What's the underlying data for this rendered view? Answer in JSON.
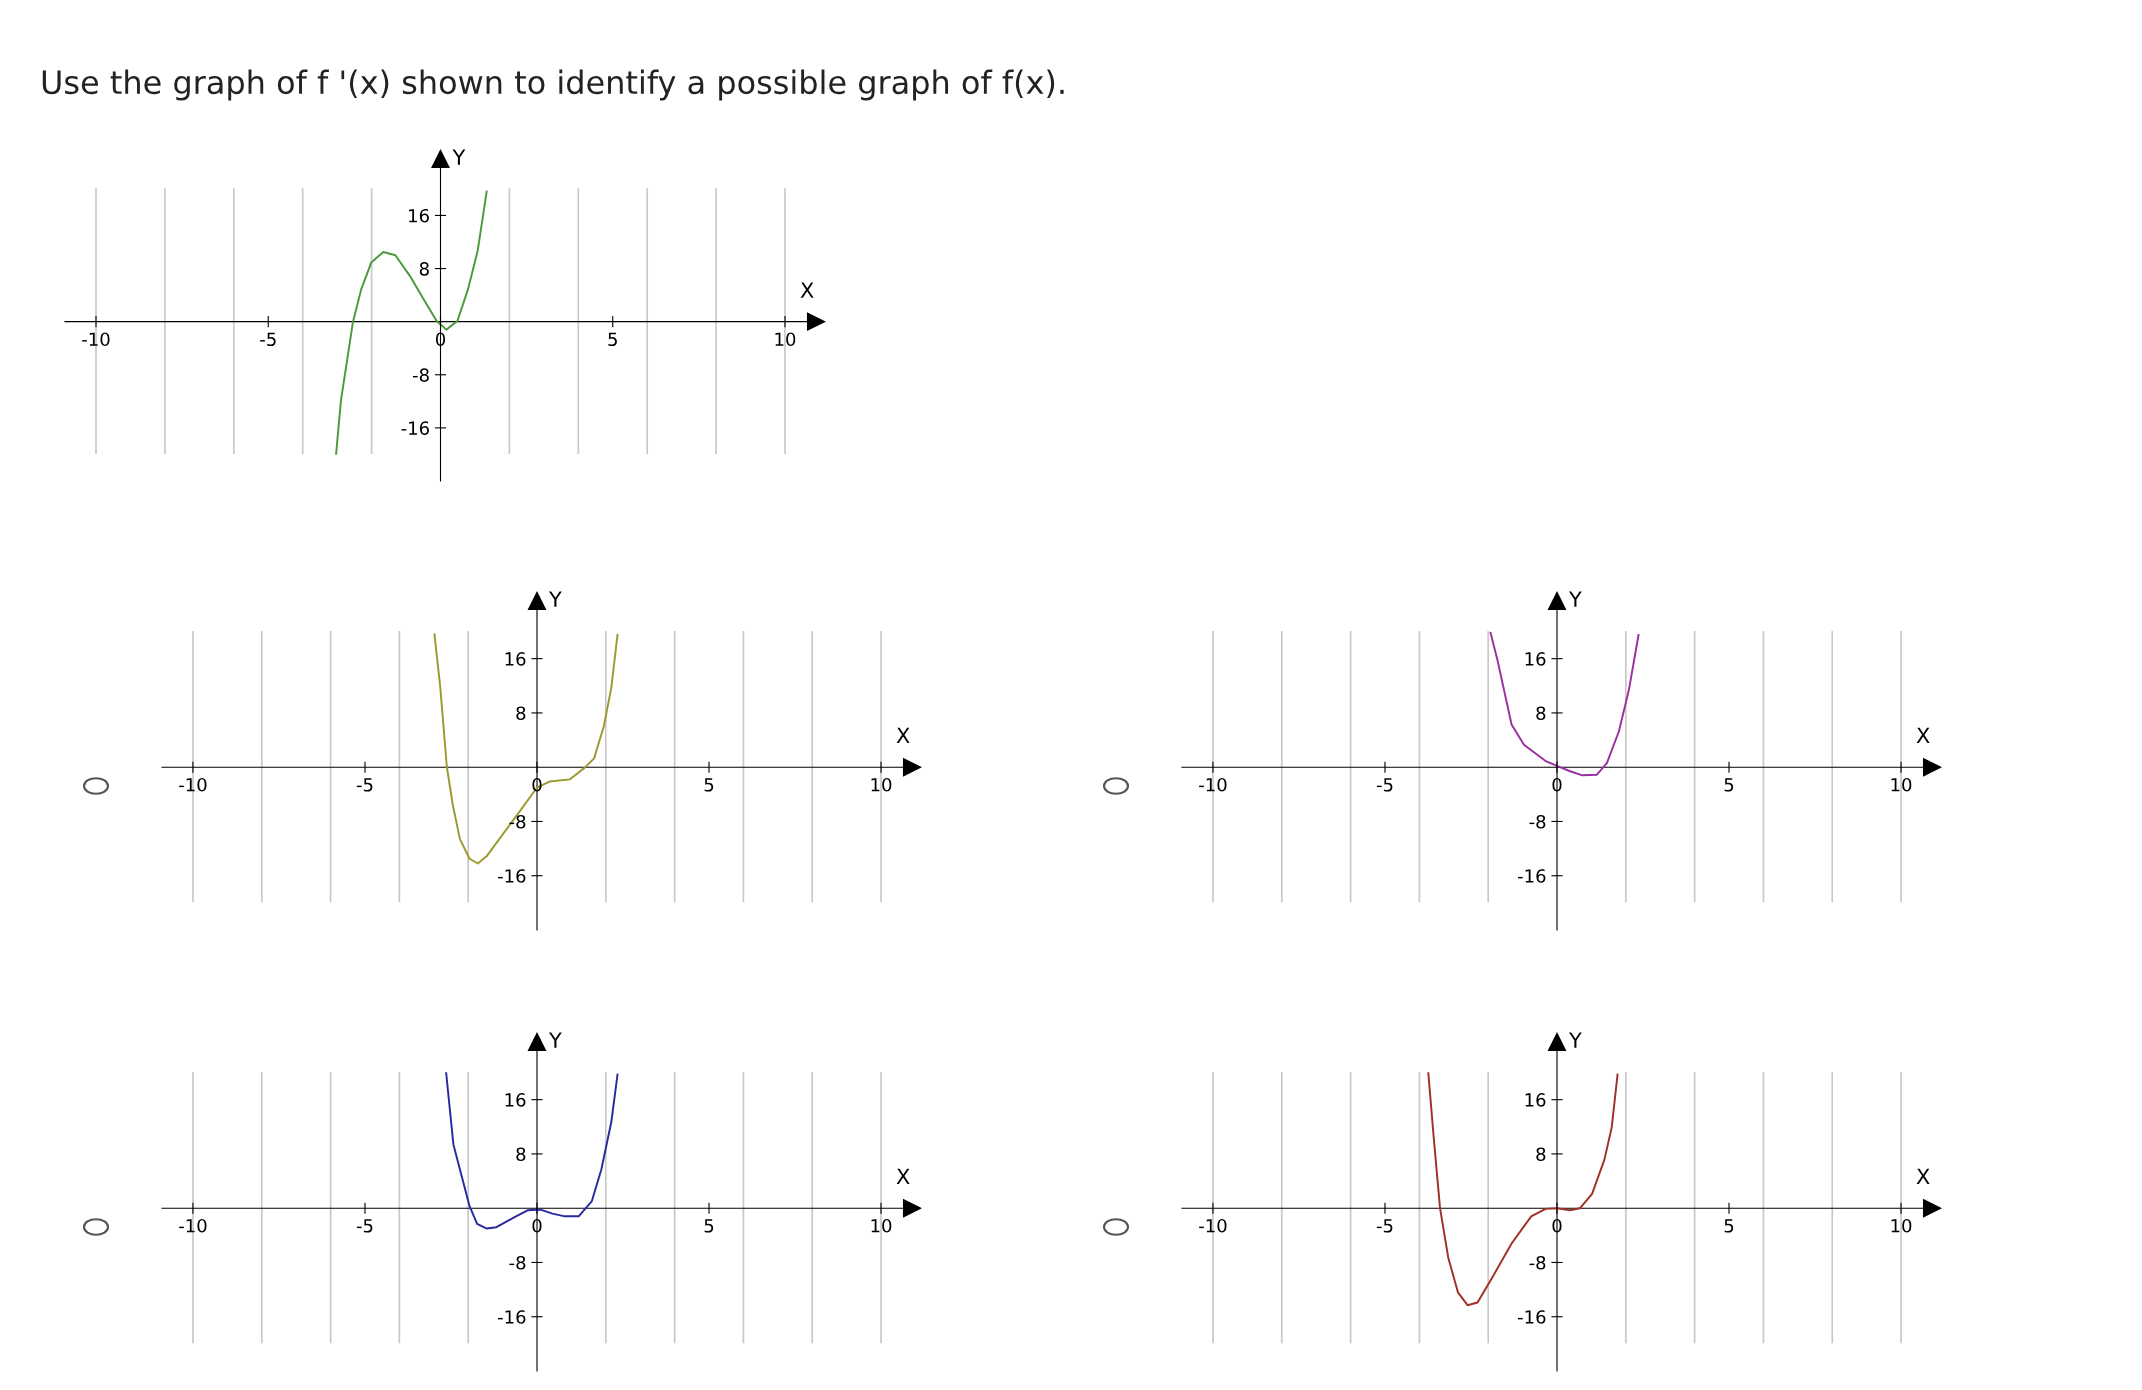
{
  "chart_data": [
    {
      "type": "line",
      "title": "Use the graph of f '(x) shown to identify a possible graph of f(x).",
      "xlabel": "X",
      "ylabel": "Y",
      "xlim": [
        -10.9,
        10.9
      ],
      "ylim": [
        -24,
        24.5
      ],
      "xticks": [
        -10,
        -5,
        0,
        5,
        10
      ],
      "yticks": [
        -16,
        -8,
        8,
        16
      ],
      "grid": "x",
      "marker": "none",
      "line_style": "solid",
      "x": [
        -3.03,
        -2.89,
        -2.54,
        -2.3,
        -2.01,
        -1.66,
        -1.31,
        -0.89,
        -0.46,
        -0.11,
        0.17,
        0.49,
        0.8,
        1.08,
        1.34
      ],
      "series": [
        {
          "color": "#4a9a3a",
          "values": [
            -19.9,
            -11.9,
            0,
            4.9,
            8.9,
            10.5,
            10.0,
            6.9,
            3.1,
            0.1,
            -1.2,
            0.1,
            4.9,
            10.7,
            19.6
          ]
        }
      ]
    },
    {
      "type": "line",
      "xlabel": "X",
      "ylabel": "Y",
      "xlim": [
        -10.9,
        10.9
      ],
      "ylim": [
        -24,
        24.5
      ],
      "xticks": [
        -10,
        -5,
        0,
        5,
        10
      ],
      "yticks": [
        -16,
        -8,
        8,
        16
      ],
      "grid": "x",
      "marker": "none",
      "line_style": "solid",
      "x": [
        -2.98,
        -2.81,
        -2.62,
        -2.45,
        -2.24,
        -1.96,
        -1.72,
        -1.46,
        -1.04,
        -0.47,
        0,
        0.38,
        0.95,
        1.38,
        1.66,
        1.94,
        2.16,
        2.34
      ],
      "series": [
        {
          "color": "#9a9a30",
          "values": [
            19.6,
            11.7,
            0,
            -5.5,
            -10.6,
            -13.5,
            -14.2,
            -13.1,
            -10.2,
            -6.3,
            -3.0,
            -2.1,
            -1.8,
            -0.1,
            1.3,
            6.0,
            11.7,
            19.5
          ]
        }
      ]
    },
    {
      "type": "line",
      "xlabel": "X",
      "ylabel": "Y",
      "xlim": [
        -10.9,
        10.9
      ],
      "ylim": [
        -24,
        24.5
      ],
      "xticks": [
        -10,
        -5,
        0,
        5,
        10
      ],
      "yticks": [
        -16,
        -8,
        8,
        16
      ],
      "grid": "x",
      "marker": "none",
      "line_style": "solid",
      "x": [
        -1.93,
        -1.74,
        -1.32,
        -0.96,
        -0.33,
        0,
        0.38,
        0.74,
        1.16,
        1.45,
        1.8,
        2.09,
        2.37
      ],
      "series": [
        {
          "color": "#9a30a0",
          "values": [
            19.8,
            16.0,
            6.3,
            3.3,
            0.9,
            0.2,
            -0.6,
            -1.2,
            -1.1,
            0.6,
            5.3,
            11.4,
            19.5
          ]
        }
      ]
    },
    {
      "type": "line",
      "xlabel": "X",
      "ylabel": "Y",
      "xlim": [
        -10.9,
        10.9
      ],
      "ylim": [
        -24,
        24.5
      ],
      "xticks": [
        -10,
        -5,
        0,
        5,
        10
      ],
      "yticks": [
        -16,
        -8,
        8,
        16
      ],
      "grid": "x",
      "marker": "none",
      "line_style": "solid",
      "x": [
        -2.64,
        -2.43,
        -1.96,
        -1.74,
        -1.46,
        -1.18,
        -0.68,
        -0.26,
        0.1,
        0.45,
        0.81,
        1.21,
        1.59,
        1.87,
        2.16,
        2.34
      ],
      "series": [
        {
          "color": "#2a2aa0",
          "values": [
            19.9,
            9.4,
            0.3,
            -2.3,
            -3.0,
            -2.8,
            -1.4,
            -0.3,
            -0.2,
            -0.8,
            -1.2,
            -1.2,
            1.0,
            5.7,
            12.7,
            19.7
          ]
        }
      ]
    },
    {
      "type": "line",
      "xlabel": "X",
      "ylabel": "Y",
      "xlim": [
        -10.9,
        10.9
      ],
      "ylim": [
        -24,
        24.5
      ],
      "xticks": [
        -10,
        -5,
        0,
        5,
        10
      ],
      "yticks": [
        -16,
        -8,
        8,
        16
      ],
      "grid": "x",
      "marker": "none",
      "line_style": "solid",
      "x": [
        -3.74,
        -3.59,
        -3.4,
        -3.16,
        -2.88,
        -2.6,
        -2.31,
        -1.89,
        -1.32,
        -0.75,
        -0.33,
        0,
        0.38,
        0.67,
        1.02,
        1.38,
        1.59,
        1.76
      ],
      "series": [
        {
          "color": "#a03028",
          "values": [
            19.9,
            10.8,
            0,
            -7.3,
            -12.4,
            -14.3,
            -13.9,
            -10.3,
            -5.2,
            -1.2,
            -0.1,
            0,
            -0.3,
            0,
            2.1,
            7.2,
            11.9,
            19.7
          ]
        }
      ]
    }
  ]
}
